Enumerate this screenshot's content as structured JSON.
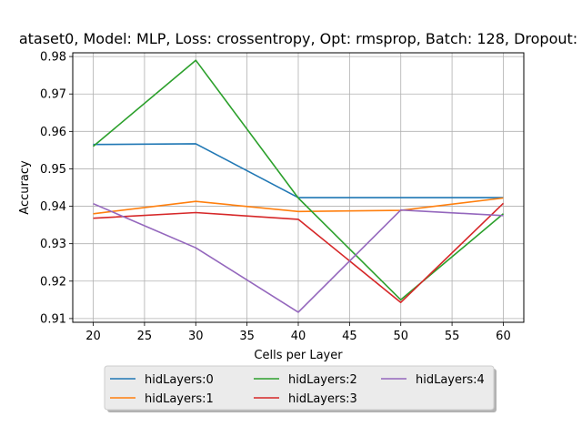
{
  "chart_data": {
    "type": "line",
    "title": "ataset0, Model: MLP, Loss: crossentropy, Opt: rmsprop, Batch: 128, Dropout:",
    "xlabel": "Cells per Layer",
    "ylabel": "Accuracy",
    "x": [
      20,
      30,
      40,
      50,
      60
    ],
    "xlim": [
      18,
      62
    ],
    "ylim": [
      0.909,
      0.981
    ],
    "xticks": [
      20,
      25,
      30,
      35,
      40,
      45,
      50,
      55,
      60
    ],
    "yticks": [
      0.91,
      0.92,
      0.93,
      0.94,
      0.95,
      0.96,
      0.97,
      0.98
    ],
    "grid": true,
    "legend_position": "bottom-outside",
    "series": [
      {
        "name": "hidLayers:0",
        "color": "#1f77b4",
        "values": [
          0.9565,
          0.9567,
          0.9423,
          0.9423,
          0.9423
        ]
      },
      {
        "name": "hidLayers:1",
        "color": "#ff7f0e",
        "values": [
          0.938,
          0.9413,
          0.9386,
          0.9389,
          0.9422
        ]
      },
      {
        "name": "hidLayers:2",
        "color": "#2ca02c",
        "values": [
          0.956,
          0.979,
          0.9422,
          0.915,
          0.938
        ]
      },
      {
        "name": "hidLayers:3",
        "color": "#d62728",
        "values": [
          0.9368,
          0.9383,
          0.9365,
          0.9143,
          0.9408
        ]
      },
      {
        "name": "hidLayers:4",
        "color": "#9467bd",
        "values": [
          0.9407,
          0.9289,
          0.9117,
          0.939,
          0.9375
        ]
      }
    ]
  }
}
